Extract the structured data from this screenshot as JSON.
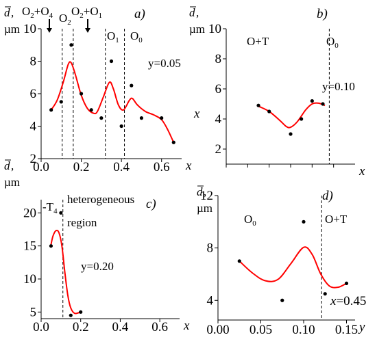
{
  "chart_data": [
    {
      "id": "a",
      "type": "scatter",
      "panel_label": "a)",
      "ylabel_sym": "d",
      "ylabel_tail": ",",
      "yunit": "µm",
      "xlabel": "x",
      "xlim": [
        0,
        0.7
      ],
      "ylim": [
        2,
        10
      ],
      "xticks": [
        0.0,
        0.2,
        0.4,
        0.6
      ],
      "xtick_labels": [
        "0.0",
        "0.2",
        "0.4",
        "0.6"
      ],
      "yticks": [
        2,
        4,
        6,
        8,
        10
      ],
      "ytick_labels": [
        "2",
        "4",
        "6",
        "8",
        "10"
      ],
      "annotation": "y=0.05",
      "phase_labels": [
        {
          "main": "O",
          "sub": "2",
          "rest": "+O",
          "sub2": "4",
          "arrow": true
        },
        {
          "main": "O",
          "sub": "2",
          "rest": "",
          "sub2": "",
          "arrow": false
        },
        {
          "main": "O",
          "sub": "2",
          "rest": "+O",
          "sub2": "1",
          "arrow": true
        },
        {
          "main": "O",
          "sub": "1",
          "rest": "",
          "sub2": "",
          "arrow": false
        },
        {
          "main": "O",
          "sub": "0",
          "rest": "",
          "sub2": "",
          "arrow": false
        }
      ],
      "boundaries_x": [
        0.105,
        0.16,
        0.32,
        0.415
      ],
      "points": [
        [
          0.05,
          5.0
        ],
        [
          0.1,
          5.5
        ],
        [
          0.15,
          9.0
        ],
        [
          0.2,
          6.0
        ],
        [
          0.25,
          5.0
        ],
        [
          0.3,
          4.5
        ],
        [
          0.35,
          8.0
        ],
        [
          0.4,
          4.0
        ],
        [
          0.45,
          6.5
        ],
        [
          0.5,
          4.5
        ],
        [
          0.6,
          4.5
        ],
        [
          0.66,
          3.0
        ]
      ],
      "fit_curve": [
        [
          0.05,
          5.0
        ],
        [
          0.08,
          5.6
        ],
        [
          0.11,
          6.7
        ],
        [
          0.135,
          7.8
        ],
        [
          0.15,
          7.9
        ],
        [
          0.17,
          7.2
        ],
        [
          0.2,
          5.9
        ],
        [
          0.23,
          5.1
        ],
        [
          0.26,
          4.8
        ],
        [
          0.28,
          4.9
        ],
        [
          0.31,
          5.8
        ],
        [
          0.34,
          6.7
        ],
        [
          0.36,
          6.3
        ],
        [
          0.385,
          5.3
        ],
        [
          0.41,
          5.0
        ],
        [
          0.44,
          5.6
        ],
        [
          0.455,
          5.7
        ],
        [
          0.48,
          5.3
        ],
        [
          0.52,
          4.9
        ],
        [
          0.56,
          4.7
        ],
        [
          0.6,
          4.4
        ],
        [
          0.63,
          3.8
        ],
        [
          0.66,
          3.0
        ]
      ]
    },
    {
      "id": "b",
      "type": "scatter",
      "panel_label": "b)",
      "ylabel_sym": "d",
      "ylabel_tail": ",",
      "yunit": "µm",
      "ylabel_var": "x",
      "xlabel": "x",
      "xlim": [
        0,
        0.6
      ],
      "ylim": [
        1,
        10
      ],
      "xticks": [
        0.0,
        0.1,
        0.2,
        0.3,
        0.4,
        0.5
      ],
      "xtick_labels": [
        "",
        "",
        "",
        "",
        "",
        ""
      ],
      "yticks": [
        2,
        4,
        6,
        8,
        10
      ],
      "ytick_labels": [
        "2",
        "4",
        "6",
        "8",
        "10"
      ],
      "annotation": "y=0.10",
      "region_labels": [
        "O+T",
        "O"
      ],
      "region_label_sub": "0",
      "boundaries_x": [
        0.48
      ],
      "points": [
        [
          0.15,
          4.9
        ],
        [
          0.2,
          4.5
        ],
        [
          0.3,
          3.0
        ],
        [
          0.35,
          4.0
        ],
        [
          0.4,
          5.2
        ],
        [
          0.45,
          5.0
        ]
      ],
      "fit_curve": [
        [
          0.15,
          4.85
        ],
        [
          0.2,
          4.5
        ],
        [
          0.25,
          3.9
        ],
        [
          0.28,
          3.5
        ],
        [
          0.3,
          3.45
        ],
        [
          0.33,
          3.8
        ],
        [
          0.37,
          4.6
        ],
        [
          0.4,
          5.0
        ],
        [
          0.43,
          5.05
        ],
        [
          0.46,
          4.9
        ]
      ]
    },
    {
      "id": "c",
      "type": "scatter",
      "panel_label": "c)",
      "ylabel_sym": "d",
      "ylabel_tail": ",",
      "yunit": "µm",
      "xlabel": "x",
      "xlim": [
        0,
        0.7
      ],
      "ylim": [
        4,
        22
      ],
      "xticks": [
        0.0,
        0.2,
        0.4,
        0.6
      ],
      "xtick_labels": [
        "0.0",
        "0.2",
        "0.4",
        "0.6"
      ],
      "yticks": [
        5,
        10,
        15,
        20
      ],
      "ytick_labels": [
        "5",
        "10",
        "15",
        "20"
      ],
      "annotation": "y=0.20",
      "region_labels": [
        "T",
        "heterogeneous",
        "region"
      ],
      "region_label_sub": "4",
      "boundaries_x": [
        0.11
      ],
      "points": [
        [
          0.05,
          15.0
        ],
        [
          0.1,
          20.0
        ],
        [
          0.15,
          4.5
        ],
        [
          0.2,
          5.0
        ]
      ],
      "fit_curve": [
        [
          0.05,
          15.2
        ],
        [
          0.06,
          16.5
        ],
        [
          0.075,
          17.3
        ],
        [
          0.09,
          17.0
        ],
        [
          0.105,
          15.0
        ],
        [
          0.12,
          11.0
        ],
        [
          0.135,
          7.5
        ],
        [
          0.15,
          5.6
        ],
        [
          0.17,
          4.8
        ],
        [
          0.2,
          5.0
        ]
      ]
    },
    {
      "id": "d",
      "type": "scatter",
      "panel_label": "d)",
      "ylabel_sym": "d",
      "ylabel_tail": ",",
      "yunit": "µm",
      "xlabel": "y",
      "xlim": [
        0,
        0.16
      ],
      "ylim": [
        2.5,
        12
      ],
      "xticks": [
        0.0,
        0.05,
        0.1,
        0.15
      ],
      "xtick_labels": [
        "0.00",
        "0.05",
        "0.10",
        "0.15"
      ],
      "yticks": [
        4,
        8,
        12
      ],
      "ytick_labels": [
        "4",
        "8",
        "12"
      ],
      "annotation_var": "x",
      "annotation_value": "=0.45",
      "region_labels": [
        "O",
        "O+T"
      ],
      "region_label_sub": "0",
      "boundaries_x": [
        0.121
      ],
      "points": [
        [
          0.025,
          7.0
        ],
        [
          0.075,
          4.0
        ],
        [
          0.1,
          10.0
        ],
        [
          0.125,
          4.5
        ],
        [
          0.15,
          5.3
        ]
      ],
      "fit_curve": [
        [
          0.025,
          7.0
        ],
        [
          0.04,
          6.1
        ],
        [
          0.055,
          5.5
        ],
        [
          0.07,
          5.6
        ],
        [
          0.085,
          6.8
        ],
        [
          0.1,
          8.05
        ],
        [
          0.11,
          7.5
        ],
        [
          0.12,
          6.0
        ],
        [
          0.13,
          5.1
        ],
        [
          0.14,
          5.0
        ],
        [
          0.15,
          5.3
        ]
      ]
    }
  ]
}
